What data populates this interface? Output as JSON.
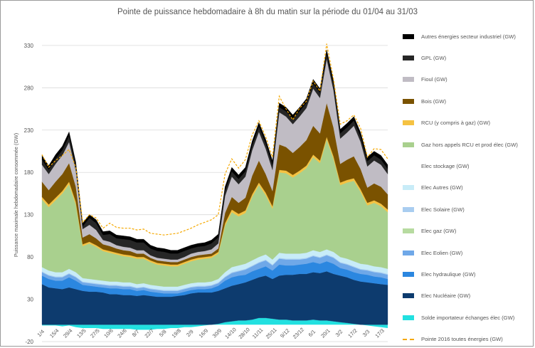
{
  "chart_data": {
    "type": "area",
    "title": "Pointe de puissance hebdomadaire à 8h du matin sur la période du 01/04 au 31/03",
    "ylabel": "Puissance maximale hebdomadaire consommée (GW)",
    "xlabel": "",
    "ylim": [
      -20,
      340
    ],
    "yticks": [
      -20,
      30,
      80,
      130,
      180,
      230,
      280,
      330
    ],
    "grid": "horizontal",
    "legend_position": "right",
    "x": [
      "1/4",
      "8/4",
      "15/4",
      "22/4",
      "29/4",
      "6/5",
      "13/5",
      "20/5",
      "27/5",
      "3/6",
      "10/6",
      "17/6",
      "24/6",
      "1/7",
      "8/7",
      "15/7",
      "22/7",
      "29/7",
      "5/8",
      "12/8",
      "19/8",
      "26/8",
      "2/9",
      "9/9",
      "16/9",
      "23/9",
      "30/9",
      "7/10",
      "14/10",
      "21/10",
      "28/10",
      "4/11",
      "11/11",
      "18/11",
      "25/11",
      "2/12",
      "9/12",
      "16/12",
      "23/12",
      "30/12",
      "6/1",
      "13/1",
      "20/1",
      "27/1",
      "3/2",
      "10/2",
      "17/2",
      "24/2",
      "3/3",
      "10/3",
      "17/3",
      "24/3"
    ],
    "x_tick_labels": [
      "1/4",
      "15/4",
      "29/4",
      "13/5",
      "27/5",
      "10/6",
      "24/6",
      "8/7",
      "22/7",
      "5/8",
      "19/8",
      "2/9",
      "16/9",
      "30/9",
      "14/10",
      "28/10",
      "11/11",
      "25/11",
      "9/12",
      "23/12",
      "6/1",
      "20/1",
      "3/2",
      "17/2",
      "3/3",
      "17/3"
    ],
    "series": [
      {
        "name": "Solde importateur échanges élec (GW)",
        "color": "#22e0e0",
        "values": [
          -1,
          -1,
          -1,
          -2,
          -1,
          -3,
          -4,
          -4,
          -4,
          -5,
          -5,
          -5,
          -5,
          -5,
          -6,
          -6,
          -6,
          -5,
          -5,
          -4,
          -4,
          -3,
          -3,
          -2,
          -1,
          0,
          1,
          3,
          4,
          5,
          5,
          6,
          8,
          8,
          7,
          6,
          6,
          5,
          5,
          5,
          6,
          5,
          5,
          4,
          3,
          2,
          1,
          0,
          -1,
          -2,
          -3,
          -4
        ]
      },
      {
        "name": "Elec Nucléaire (GW)",
        "color": "#0d3b6e",
        "values": [
          48,
          44,
          43,
          42,
          44,
          42,
          40,
          39,
          39,
          38,
          36,
          36,
          35,
          35,
          34,
          35,
          34,
          33,
          33,
          33,
          34,
          35,
          37,
          38,
          38,
          38,
          39,
          40,
          42,
          43,
          45,
          47,
          48,
          50,
          47,
          52,
          53,
          54,
          55,
          55,
          56,
          56,
          58,
          56,
          55,
          54,
          52,
          51,
          50,
          49,
          48,
          47
        ]
      },
      {
        "name": "Elec hydraulique (GW)",
        "color": "#2b87e0",
        "values": [
          10,
          10,
          9,
          10,
          12,
          10,
          7,
          7,
          6,
          6,
          7,
          7,
          7,
          7,
          6,
          6,
          5,
          5,
          4,
          4,
          3,
          4,
          4,
          4,
          4,
          5,
          6,
          9,
          10,
          10,
          9,
          10,
          10,
          11,
          10,
          13,
          11,
          11,
          11,
          12,
          12,
          11,
          12,
          12,
          9,
          9,
          9,
          9,
          9,
          8,
          8,
          7
        ]
      },
      {
        "name": "Elec Eolien (GW)",
        "color": "#6fa8e8",
        "values": [
          4,
          4,
          4,
          4,
          4,
          4,
          3,
          3,
          3,
          3,
          3,
          3,
          3,
          3,
          3,
          3,
          3,
          3,
          3,
          3,
          3,
          3,
          3,
          3,
          3,
          3,
          3,
          4,
          5,
          5,
          6,
          6,
          7,
          7,
          6,
          7,
          7,
          7,
          6,
          6,
          7,
          7,
          7,
          7,
          6,
          6,
          6,
          5,
          5,
          5,
          5,
          5
        ]
      },
      {
        "name": "Elec Solaire (GW)",
        "color": "#a9cdf0",
        "values": [
          1,
          1,
          1,
          1,
          1,
          1,
          1,
          1,
          1,
          1,
          1,
          1,
          1,
          1,
          1,
          1,
          1,
          1,
          1,
          1,
          1,
          1,
          1,
          1,
          1,
          1,
          1,
          1,
          1,
          1,
          1,
          1,
          1,
          1,
          1,
          1,
          1,
          1,
          1,
          1,
          1,
          1,
          1,
          1,
          1,
          1,
          1,
          1,
          1,
          1,
          1,
          1
        ]
      },
      {
        "name": "Elec Autres (GW)",
        "color": "#c8ecf8",
        "values": [
          5,
          5,
          5,
          5,
          5,
          5,
          4,
          4,
          4,
          4,
          4,
          4,
          4,
          4,
          4,
          4,
          4,
          4,
          4,
          4,
          4,
          4,
          4,
          4,
          4,
          4,
          4,
          5,
          6,
          6,
          6,
          6,
          6,
          6,
          6,
          6,
          6,
          6,
          6,
          6,
          6,
          6,
          6,
          6,
          6,
          6,
          6,
          6,
          6,
          6,
          6,
          6
        ]
      },
      {
        "name": "Elec stockage (GW)",
        "color": "#ffffff",
        "values": [
          0,
          0,
          0,
          0,
          0,
          0,
          0,
          0,
          0,
          0,
          0,
          0,
          0,
          0,
          0,
          0,
          0,
          0,
          0,
          0,
          0,
          0,
          0,
          0,
          0,
          0,
          0,
          0,
          0,
          0,
          0,
          0,
          0,
          0,
          0,
          0,
          0,
          0,
          0,
          0,
          0,
          0,
          0,
          0,
          0,
          0,
          0,
          0,
          0,
          0,
          0,
          0
        ]
      },
      {
        "name": "Gaz hors appels RCU et prod élec (GW)",
        "color": "#a9d08e",
        "values": [
          80,
          75,
          85,
          93,
          100,
          80,
          38,
          42,
          39,
          35,
          34,
          32,
          31,
          30,
          30,
          29,
          27,
          25,
          25,
          24,
          24,
          25,
          26,
          27,
          28,
          28,
          30,
          55,
          65,
          58,
          60,
          75,
          85,
          70,
          60,
          95,
          95,
          90,
          95,
          100,
          110,
          105,
          130,
          110,
          85,
          90,
          95,
          85,
          70,
          75,
          72,
          67
        ]
      },
      {
        "name": "RCU (y compris à gaz) (GW)",
        "color": "#f5c242",
        "values": [
          3,
          3,
          3,
          3,
          3,
          3,
          2,
          2,
          2,
          2,
          2,
          2,
          2,
          2,
          2,
          2,
          2,
          2,
          2,
          2,
          2,
          2,
          2,
          2,
          2,
          2,
          2,
          3,
          3,
          3,
          3,
          3,
          3,
          3,
          3,
          3,
          3,
          3,
          3,
          3,
          3,
          3,
          3,
          3,
          3,
          3,
          3,
          3,
          3,
          3,
          3,
          3
        ]
      },
      {
        "name": "Bois (GW)",
        "color": "#7a5200",
        "values": [
          18,
          17,
          19,
          20,
          22,
          18,
          8,
          9,
          8,
          6,
          6,
          5,
          5,
          5,
          4,
          4,
          3,
          3,
          3,
          3,
          3,
          3,
          3,
          3,
          3,
          3,
          4,
          12,
          15,
          13,
          15,
          22,
          26,
          22,
          18,
          30,
          28,
          26,
          28,
          30,
          34,
          32,
          40,
          34,
          22,
          24,
          26,
          24,
          18,
          20,
          20,
          18
        ]
      },
      {
        "name": "Fioul  (GW)",
        "color": "#c0bcc4",
        "values": [
          20,
          19,
          21,
          22,
          25,
          19,
          10,
          11,
          10,
          5,
          5,
          4,
          4,
          4,
          4,
          4,
          3,
          3,
          3,
          3,
          3,
          3,
          4,
          4,
          4,
          5,
          6,
          20,
          24,
          22,
          25,
          30,
          34,
          30,
          25,
          38,
          36,
          34,
          36,
          38,
          44,
          42,
          52,
          44,
          30,
          32,
          36,
          32,
          25,
          27,
          26,
          24
        ]
      },
      {
        "name": "GPL  (GW)",
        "color": "#262626",
        "values": [
          6,
          5,
          6,
          6,
          7,
          5,
          3,
          8,
          8,
          6,
          9,
          8,
          9,
          9,
          9,
          9,
          8,
          8,
          8,
          7,
          7,
          7,
          6,
          6,
          6,
          7,
          7,
          6,
          6,
          6,
          6,
          6,
          6,
          6,
          6,
          6,
          6,
          6,
          6,
          6,
          6,
          6,
          6,
          6,
          6,
          6,
          6,
          6,
          6,
          6,
          6,
          6
        ]
      },
      {
        "name": "Autres énergies secteur industriel (GW)",
        "color": "#000000",
        "values": [
          5,
          5,
          5,
          5,
          5,
          5,
          4,
          4,
          4,
          4,
          4,
          4,
          4,
          4,
          4,
          4,
          4,
          4,
          4,
          4,
          4,
          4,
          4,
          4,
          4,
          4,
          4,
          5,
          5,
          5,
          5,
          5,
          5,
          5,
          5,
          5,
          5,
          5,
          5,
          5,
          5,
          5,
          5,
          5,
          5,
          5,
          5,
          5,
          5,
          5,
          5,
          5
        ]
      },
      {
        "name": "Pointe 2016 toutes énergies (GW)",
        "color": "#f5a800",
        "style": "dashed-line",
        "values": [
          201,
          186,
          194,
          200,
          207,
          186,
          121,
          130,
          126,
          114,
          120,
          115,
          114,
          114,
          112,
          113,
          108,
          107,
          106,
          107,
          108,
          111,
          114,
          118,
          121,
          124,
          130,
          178,
          196,
          185,
          195,
          224,
          241,
          222,
          198,
          270,
          255,
          242,
          256,
          264,
          288,
          276,
          332,
          290,
          237,
          241,
          248,
          232,
          198,
          208,
          207,
          196
        ]
      }
    ]
  },
  "legend": {
    "items": [
      {
        "label": "Autres énergies secteur industriel (GW)",
        "color": "#000000"
      },
      {
        "label": "GPL  (GW)",
        "color": "#262626"
      },
      {
        "label": "Fioul  (GW)",
        "color": "#c0bcc4"
      },
      {
        "label": "Bois (GW)",
        "color": "#7a5200"
      },
      {
        "label": "RCU (y compris à gaz) (GW)",
        "color": "#f5c242"
      },
      {
        "label": "Gaz hors appels RCU et prod élec (GW)",
        "color": "#a9d08e"
      },
      {
        "label": "Elec stockage (GW)",
        "color": "#ffffff"
      },
      {
        "label": "Elec Autres (GW)",
        "color": "#c8ecf8"
      },
      {
        "label": "Elec Solaire (GW)",
        "color": "#a9cdf0"
      },
      {
        "label": "Elec gaz (GW)",
        "color": "#b7dba0"
      },
      {
        "label": "Elec Eolien (GW)",
        "color": "#6fa8e8"
      },
      {
        "label": "Elec hydraulique (GW)",
        "color": "#2b87e0"
      },
      {
        "label": "Elec Nucléaire (GW)",
        "color": "#0d3b6e"
      },
      {
        "label": "Solde importateur échanges élec (GW)",
        "color": "#22e0e0"
      },
      {
        "label": "Pointe 2016 toutes énergies (GW)",
        "color": "#f5a800",
        "dashed": true
      }
    ]
  }
}
